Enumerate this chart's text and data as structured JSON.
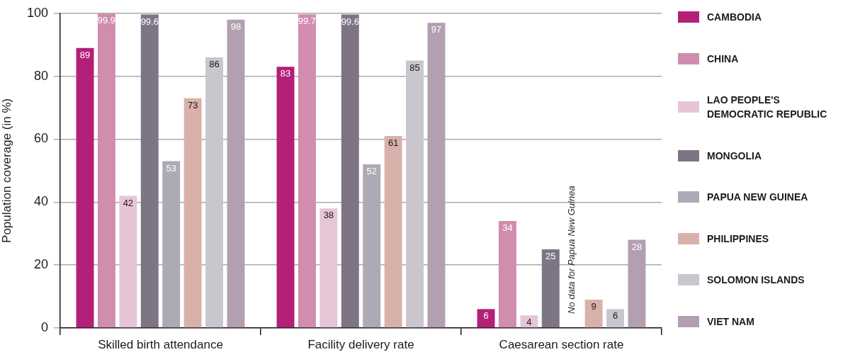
{
  "chart_data": {
    "type": "bar",
    "ylabel": "Population coverage (in %)",
    "categories": [
      "Skilled birth attendance",
      "Facility delivery rate",
      "Caesarean section rate"
    ],
    "series": [
      {
        "name": "CAMBODIA",
        "color": "#b41f78",
        "values": [
          89,
          83,
          6
        ]
      },
      {
        "name": "CHINA",
        "color": "#d08dae",
        "values": [
          99.9,
          99.7,
          34
        ]
      },
      {
        "name": "LAO PEOPLE'S DEMOCRATIC REPUBLIC",
        "color": "#e6c6d6",
        "values": [
          42,
          38,
          4
        ]
      },
      {
        "name": "MONGOLIA",
        "color": "#7d7585",
        "values": [
          99.6,
          99.6,
          25
        ]
      },
      {
        "name": "PAPUA NEW GUINEA",
        "color": "#adaab5",
        "values": [
          53,
          52,
          null
        ]
      },
      {
        "name": "PHILIPPINES",
        "color": "#d9b1ab",
        "values": [
          73,
          61,
          9
        ]
      },
      {
        "name": "SOLOMON ISLANDS",
        "color": "#c9c6cd",
        "values": [
          86,
          85,
          6
        ]
      },
      {
        "name": "VIET NAM",
        "color": "#b39fb1",
        "values": [
          98,
          97,
          28
        ]
      }
    ],
    "ylim": [
      0,
      100
    ],
    "yticks": [
      0,
      20,
      40,
      60,
      80,
      100
    ],
    "grid": "y",
    "legend": "right",
    "data_labels": true,
    "annotations": [
      {
        "text": "No data for Papua New Guinea",
        "x": "Caesarean section rate",
        "y": 0
      }
    ]
  }
}
